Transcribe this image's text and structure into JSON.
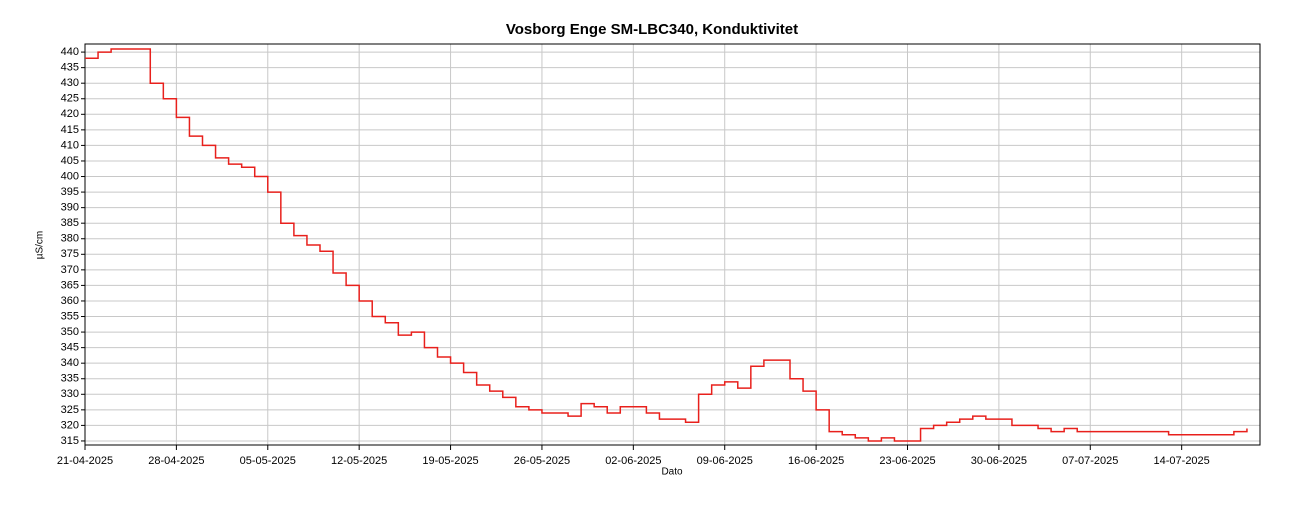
{
  "chart_data": {
    "type": "line",
    "title": "Vosborg Enge SM-LBC340, Konduktivitet",
    "x_label": "Dato",
    "y_label": "µS/cm",
    "x": [
      "21-04-2025",
      "22-04-2025",
      "23-04-2025",
      "24-04-2025",
      "25-04-2025",
      "26-04-2025",
      "27-04-2025",
      "28-04-2025",
      "29-04-2025",
      "30-04-2025",
      "01-05-2025",
      "02-05-2025",
      "03-05-2025",
      "04-05-2025",
      "05-05-2025",
      "06-05-2025",
      "07-05-2025",
      "08-05-2025",
      "09-05-2025",
      "10-05-2025",
      "11-05-2025",
      "12-05-2025",
      "13-05-2025",
      "14-05-2025",
      "15-05-2025",
      "16-05-2025",
      "17-05-2025",
      "18-05-2025",
      "19-05-2025",
      "20-05-2025",
      "21-05-2025",
      "22-05-2025",
      "23-05-2025",
      "24-05-2025",
      "25-05-2025",
      "26-05-2025",
      "27-05-2025",
      "28-05-2025",
      "29-05-2025",
      "30-05-2025",
      "31-05-2025",
      "01-06-2025",
      "02-06-2025",
      "03-06-2025",
      "04-06-2025",
      "05-06-2025",
      "06-06-2025",
      "07-06-2025",
      "08-06-2025",
      "09-06-2025",
      "10-06-2025",
      "11-06-2025",
      "12-06-2025",
      "13-06-2025",
      "14-06-2025",
      "15-06-2025",
      "16-06-2025",
      "17-06-2025",
      "18-06-2025",
      "19-06-2025",
      "20-06-2025",
      "21-06-2025",
      "22-06-2025",
      "23-06-2025",
      "24-06-2025",
      "25-06-2025",
      "26-06-2025",
      "27-06-2025",
      "28-06-2025",
      "29-06-2025",
      "30-06-2025",
      "01-07-2025",
      "02-07-2025",
      "03-07-2025",
      "04-07-2025",
      "05-07-2025",
      "06-07-2025",
      "07-07-2025",
      "08-07-2025",
      "09-07-2025",
      "10-07-2025",
      "11-07-2025",
      "12-07-2025",
      "13-07-2025",
      "14-07-2025",
      "15-07-2025",
      "16-07-2025",
      "17-07-2025",
      "18-07-2025",
      "19-07-2025"
    ],
    "series": [
      {
        "name": "Konduktivitet",
        "color": "#e8201c",
        "values": [
          438,
          440,
          441,
          441,
          441,
          430,
          425,
          419,
          413,
          410,
          406,
          404,
          403,
          400,
          395,
          385,
          381,
          378,
          376,
          369,
          365,
          360,
          355,
          353,
          349,
          350,
          345,
          342,
          340,
          337,
          333,
          331,
          329,
          326,
          325,
          324,
          324,
          323,
          327,
          326,
          324,
          326,
          326,
          324,
          322,
          322,
          321,
          330,
          333,
          334,
          332,
          339,
          341,
          341,
          335,
          331,
          325,
          318,
          317,
          316,
          315,
          316,
          315,
          315,
          319,
          320,
          321,
          322,
          323,
          322,
          322,
          320,
          320,
          319,
          318,
          319,
          318,
          318,
          318,
          318,
          318,
          318,
          318,
          317,
          317,
          317,
          317,
          317,
          318,
          319
        ]
      }
    ],
    "xlim": [
      "21-04-2025",
      "20-07-2025"
    ],
    "xticks": [
      "21-04-2025",
      "28-04-2025",
      "05-05-2025",
      "12-05-2025",
      "19-05-2025",
      "26-05-2025",
      "02-06-2025",
      "09-06-2025",
      "16-06-2025",
      "23-06-2025",
      "30-06-2025",
      "07-07-2025",
      "14-07-2025"
    ],
    "ylim": [
      313.7,
      442.6
    ],
    "yticks": [
      315,
      320,
      325,
      330,
      335,
      340,
      345,
      350,
      355,
      360,
      365,
      370,
      375,
      380,
      385,
      390,
      395,
      400,
      405,
      410,
      415,
      420,
      425,
      430,
      435,
      440
    ],
    "grid": true
  }
}
